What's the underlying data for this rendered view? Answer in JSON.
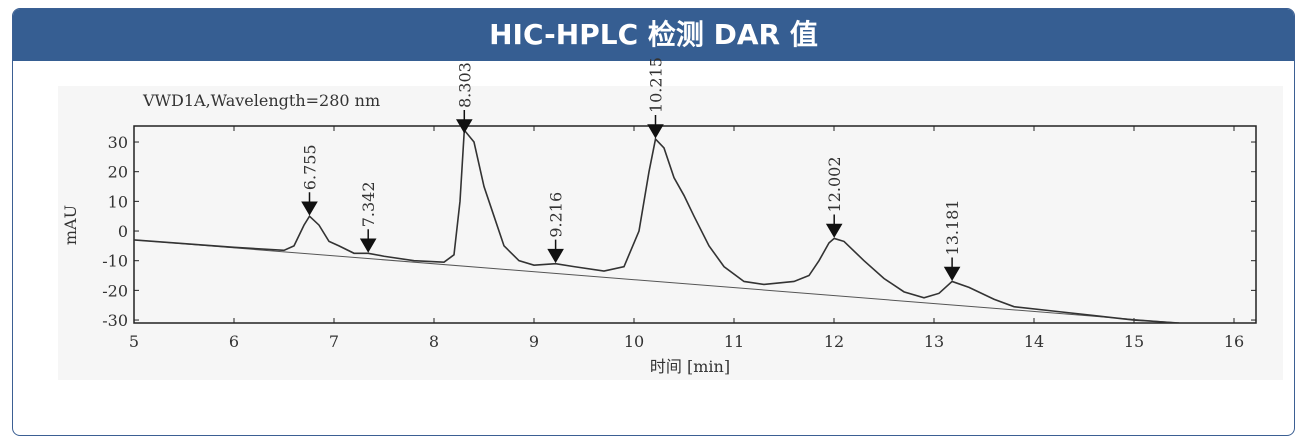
{
  "header": {
    "title": "HIC-HPLC 检测 DAR 值"
  },
  "chart_data": {
    "type": "line",
    "title": "VWD1A,Wavelength=280 nm",
    "x_label": "时间 [min]",
    "y_label": "mAU",
    "xlim": [
      5,
      16.22
    ],
    "ylim": [
      -31,
      35.4
    ],
    "xticks": [
      5,
      6,
      7,
      8,
      9,
      10,
      11,
      12,
      13,
      14,
      15,
      16
    ],
    "yticks": [
      -30,
      -20,
      -10,
      0,
      10,
      20,
      30
    ],
    "color": "#333333",
    "x": [
      5,
      6,
      6.5,
      6.6,
      6.7,
      6.755,
      6.85,
      6.95,
      7.05,
      7.2,
      7.342,
      7.5,
      7.8,
      8.1,
      8.2,
      8.26,
      8.303,
      8.4,
      8.5,
      8.6,
      8.7,
      8.85,
      9,
      9.216,
      9.4,
      9.7,
      9.9,
      10.05,
      10.15,
      10.215,
      10.3,
      10.4,
      10.5,
      10.6,
      10.75,
      10.9,
      11.1,
      11.3,
      11.6,
      11.75,
      11.85,
      11.95,
      12.002,
      12.1,
      12.3,
      12.5,
      12.7,
      12.9,
      13.05,
      13.181,
      13.35,
      13.6,
      13.8,
      14.2,
      14.6,
      15,
      15.45
    ],
    "values": [
      -3,
      -5.5,
      -6.5,
      -5,
      2,
      5,
      2,
      -3.5,
      -5,
      -7.5,
      -7.5,
      -8.5,
      -10,
      -10.5,
      -8,
      10,
      34,
      30,
      15,
      5,
      -5,
      -10,
      -11.5,
      -11,
      -12,
      -13.5,
      -12,
      0,
      20,
      31,
      28,
      18,
      12,
      5,
      -5,
      -12,
      -17,
      -18,
      -17,
      -15,
      -10,
      -4,
      -2.5,
      -3.5,
      -10,
      -16,
      -20.5,
      -22.5,
      -21,
      -17,
      -19,
      -23,
      -25.5,
      -27,
      -28.5,
      -30,
      -31
    ],
    "baseline": {
      "x": [
        5,
        15.45
      ],
      "values": [
        -3,
        -31
      ]
    },
    "peaks": [
      {
        "x": 6.755,
        "y": 5
      },
      {
        "x": 7.342,
        "y": -7.5
      },
      {
        "x": 8.303,
        "y": 34
      },
      {
        "x": 9.216,
        "y": -11
      },
      {
        "x": 10.215,
        "y": 31
      },
      {
        "x": 12.002,
        "y": -2.5
      },
      {
        "x": 13.181,
        "y": -17
      }
    ]
  }
}
